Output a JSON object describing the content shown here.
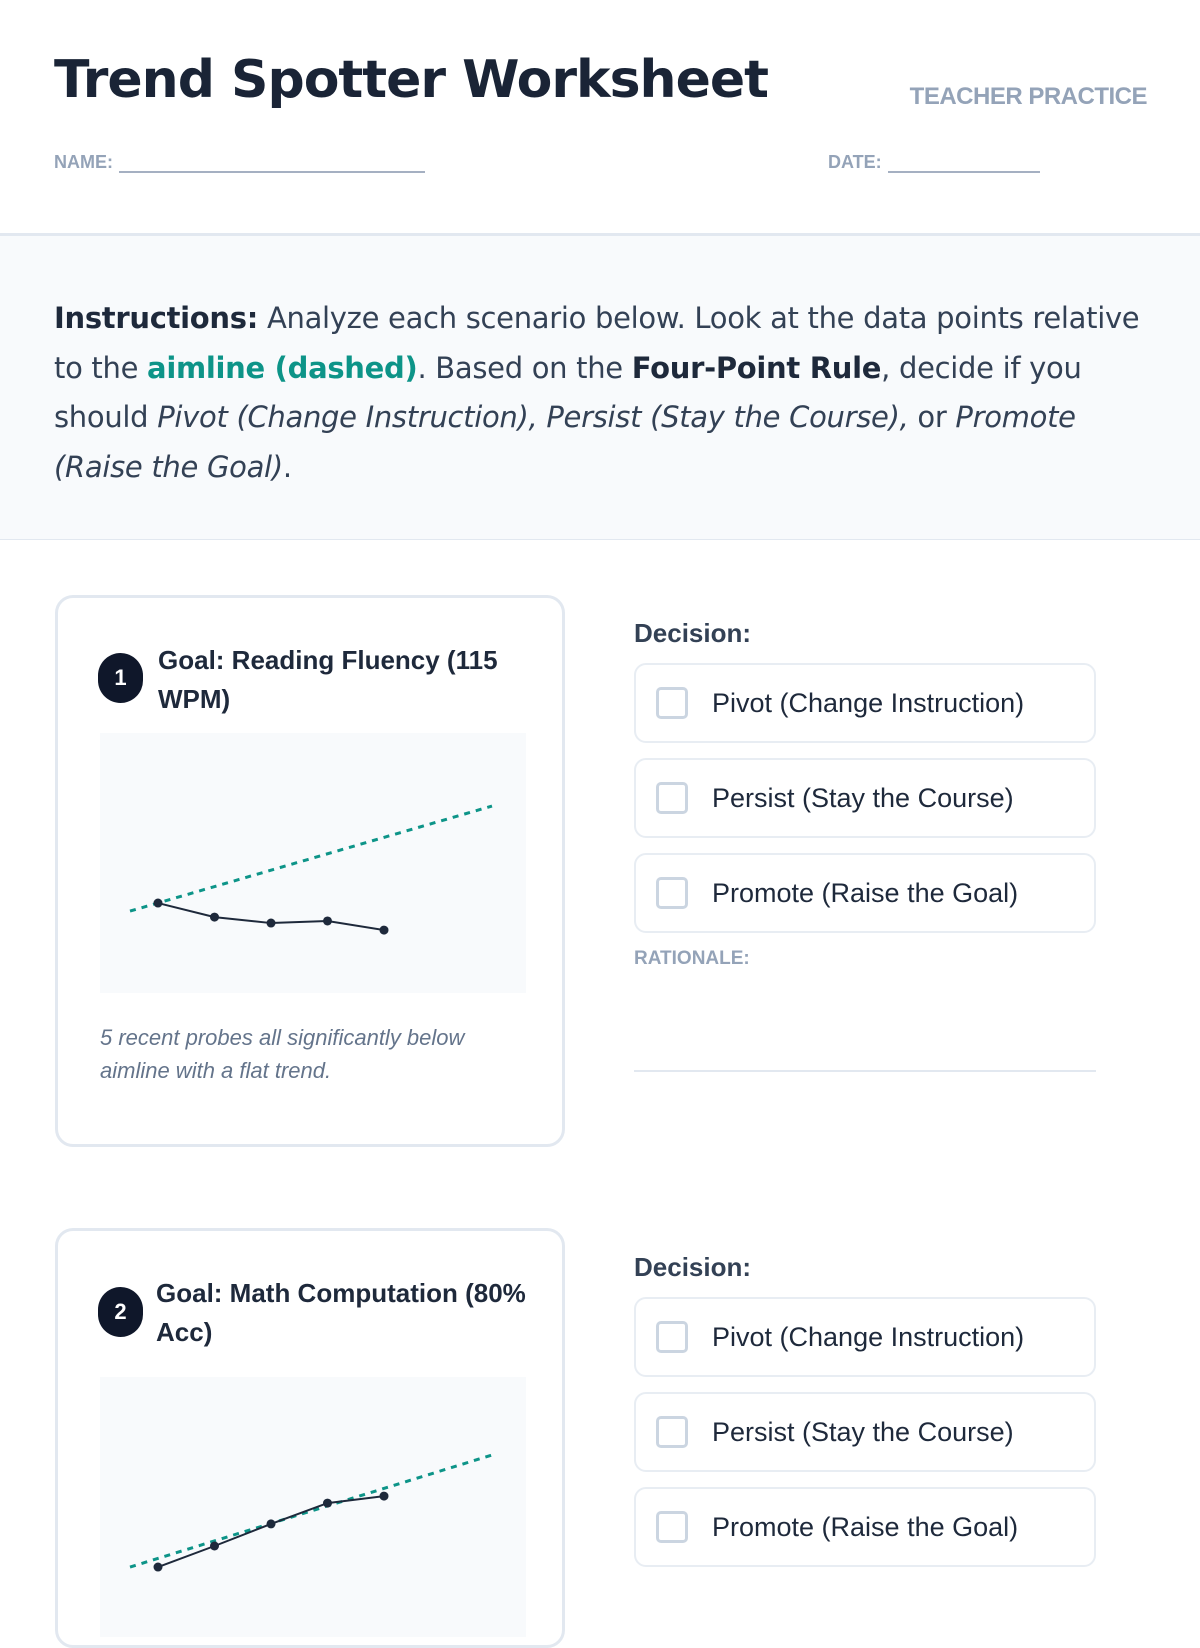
{
  "header": {
    "title": "Trend Spotter Worksheet",
    "tag": "TEACHER PRACTICE",
    "name_label": "NAME:",
    "date_label": "DATE:"
  },
  "instructions": {
    "lead": "Instructions:",
    "t1": " Analyze each scenario below. Look at the data points relative to the ",
    "aimline": "aimline (dashed)",
    "t2": ". Based on the ",
    "rule": "Four-Point Rule",
    "t3": ", decide if you should ",
    "options": "Pivot (Change Instruction), Persist (Stay the Course),",
    "t4": " or ",
    "last": "Promote (Raise the Goal)",
    "t5": "."
  },
  "colors": {
    "aimline": "#0d9488",
    "data": "#1e293b",
    "badge": "#0f172a"
  },
  "scenarios": [
    {
      "number": "1",
      "goal": "Goal: Reading Fluency (115 WPM)",
      "note": "5 recent probes all significantly below aimline with a flat trend.",
      "decision_label": "Decision:",
      "options": [
        "Pivot (Change Instruction)",
        "Persist (Stay the Course)",
        "Promote (Raise the Goal)"
      ],
      "rationale_label": "RATIONALE:"
    },
    {
      "number": "2",
      "goal": "Goal: Math Computation (80% Acc)",
      "decision_label": "Decision:",
      "options": [
        "Pivot (Change Instruction)",
        "Persist (Stay the Course)",
        "Promote (Raise the Goal)"
      ]
    }
  ],
  "chart_data": [
    {
      "type": "line",
      "ylim": [
        0,
        100
      ],
      "series": [
        {
          "values": [
            34.6,
            29.2,
            26.9,
            27.7,
            24.2
          ]
        }
      ],
      "aimline": {
        "start": 31.5,
        "end": 71.9,
        "style": "dashed"
      },
      "grid": false
    },
    {
      "type": "line",
      "ylim": [
        0,
        100
      ],
      "series": [
        {
          "values": [
            26.9,
            35.0,
            43.5,
            51.5,
            54.2
          ]
        }
      ],
      "aimline": {
        "start": 26.9,
        "end": 70.0,
        "style": "dashed"
      },
      "grid": false
    }
  ]
}
